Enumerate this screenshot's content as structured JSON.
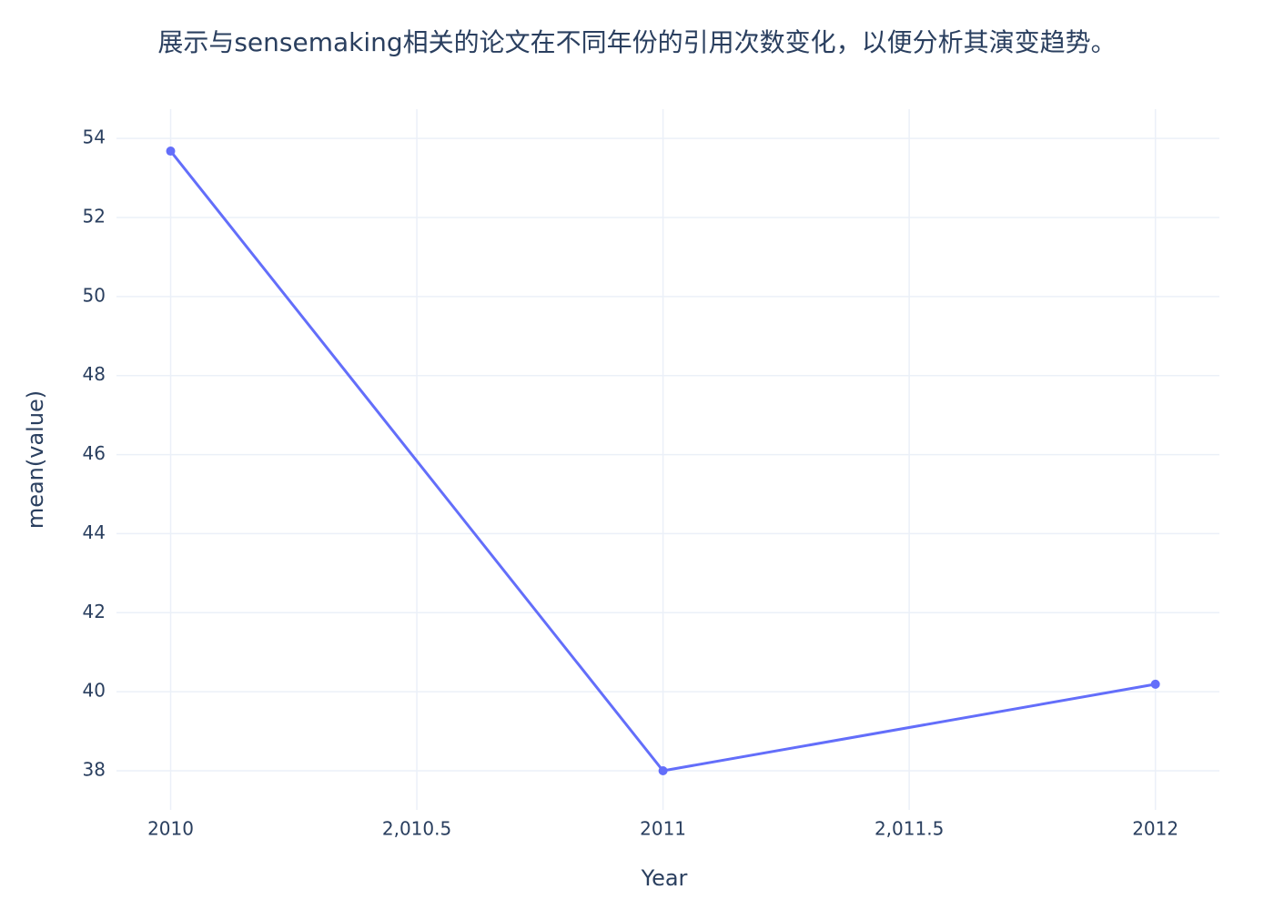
{
  "chart_data": {
    "type": "line",
    "title": "展示与sensemaking相关的论文在不同年份的引用次数变化，以便分析其演变趋势。",
    "x_label": "Year",
    "y_label": "mean(value)",
    "x": [
      2010,
      2011,
      2012
    ],
    "series": [
      {
        "name": "mean(value)",
        "color": "#636efa",
        "values": [
          53.68,
          38,
          40.19
        ]
      }
    ],
    "xlim": [
      2009.89,
      2012.13
    ],
    "xticks": [
      2010,
      {
        "value": 2010.5,
        "label": "2,010.5"
      },
      2011,
      {
        "value": 2011.5,
        "label": "2,011.5"
      },
      2012
    ],
    "ylim": [
      37.01,
      54.74
    ],
    "yticks": [
      38,
      40,
      42,
      44,
      46,
      48,
      50,
      52,
      54
    ],
    "grid": true
  }
}
